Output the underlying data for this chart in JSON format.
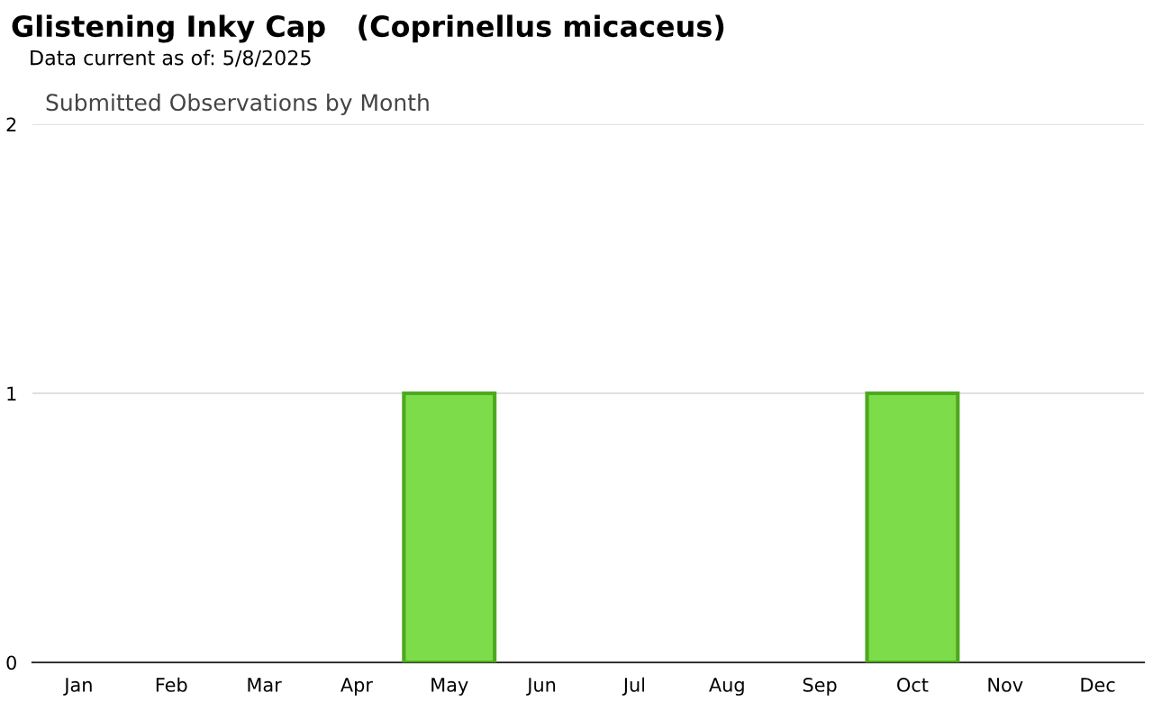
{
  "chart_data": {
    "type": "bar",
    "title": "Glistening Inky Cap   (Coprinellus micaceus)",
    "subtitle": "Data current as of: 5/8/2025",
    "annotations": [
      "Submitted Observations by Month"
    ],
    "categories": [
      "Jan",
      "Feb",
      "Mar",
      "Apr",
      "May",
      "Jun",
      "Jul",
      "Aug",
      "Sep",
      "Oct",
      "Nov",
      "Dec"
    ],
    "values": [
      0,
      0,
      0,
      0,
      1,
      0,
      0,
      0,
      0,
      1,
      0,
      0
    ],
    "color": "#7ddc4a",
    "ylim": [
      0,
      2
    ],
    "yticks": [
      0,
      1,
      2
    ],
    "grid": "y"
  }
}
